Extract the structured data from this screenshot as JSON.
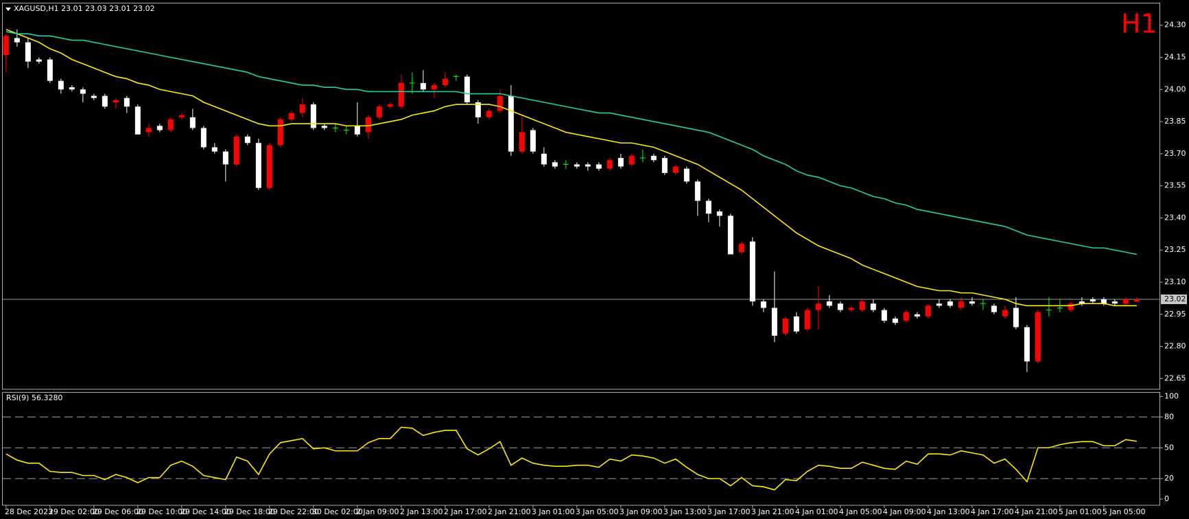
{
  "chart_data": [
    {
      "type": "candlestick",
      "title": "XAGUSD,H1  23.01 23.03 23.01 23.02",
      "annotation": "H1",
      "categories": [
        "28 Dec 2023",
        null,
        null,
        null,
        "29 Dec 02:00",
        null,
        null,
        null,
        "29 Dec 06:00",
        null,
        null,
        null,
        "29 Dec 10:00",
        null,
        null,
        null,
        "29 Dec 14:00",
        null,
        null,
        null,
        "29 Dec 18:00",
        null,
        null,
        null,
        "29 Dec 22:00",
        null,
        null,
        null,
        "30 Dec 02:00",
        null,
        null,
        null,
        "2 Jan 09:00",
        null,
        null,
        null,
        "2 Jan 13:00",
        null,
        null,
        null,
        "2 Jan 17:00",
        null,
        null,
        null,
        "2 Jan 21:00",
        null,
        null,
        null,
        "3 Jan 01:00",
        null,
        null,
        null,
        "3 Jan 05:00",
        null,
        null,
        null,
        "3 Jan 09:00",
        null,
        null,
        null,
        "3 Jan 13:00",
        null,
        null,
        null,
        "3 Jan 17:00",
        null,
        null,
        null,
        "3 Jan 21:00",
        null,
        null,
        null,
        "4 Jan 01:00",
        null,
        null,
        null,
        "4 Jan 05:00",
        null,
        null,
        null,
        "4 Jan 09:00",
        null,
        null,
        null,
        "4 Jan 13:00",
        null,
        null,
        null,
        "4 Jan 17:00",
        null,
        null,
        null,
        "4 Jan 21:00",
        null,
        null,
        null,
        "5 Jan 01:00",
        null,
        null,
        null,
        "5 Jan 05:00",
        null,
        null,
        null
      ],
      "ohlc": [
        [
          24.16,
          24.26,
          24.08,
          24.25
        ],
        [
          24.24,
          24.28,
          24.2,
          24.22
        ],
        [
          24.22,
          24.24,
          24.1,
          24.13
        ],
        [
          24.14,
          24.15,
          24.12,
          24.13
        ],
        [
          24.14,
          24.15,
          24.03,
          24.04
        ],
        [
          24.04,
          24.05,
          23.98,
          24.0
        ],
        [
          24.01,
          24.02,
          23.99,
          24.0
        ],
        [
          24.0,
          24.01,
          23.94,
          23.98
        ],
        [
          23.97,
          23.98,
          23.95,
          23.96
        ],
        [
          23.97,
          23.98,
          23.91,
          23.92
        ],
        [
          23.94,
          23.96,
          23.91,
          23.95
        ],
        [
          23.96,
          23.97,
          23.89,
          23.92
        ],
        [
          23.92,
          23.93,
          23.79,
          23.79
        ],
        [
          23.8,
          23.84,
          23.78,
          23.82
        ],
        [
          23.83,
          23.84,
          23.8,
          23.81
        ],
        [
          23.81,
          23.87,
          23.8,
          23.86
        ],
        [
          23.87,
          23.89,
          23.86,
          23.88
        ],
        [
          23.87,
          23.91,
          23.81,
          23.82
        ],
        [
          23.82,
          23.83,
          23.72,
          23.73
        ],
        [
          23.73,
          23.75,
          23.7,
          23.71
        ],
        [
          23.71,
          23.72,
          23.57,
          23.65
        ],
        [
          23.65,
          23.79,
          23.64,
          23.78
        ],
        [
          23.78,
          23.79,
          23.74,
          23.75
        ],
        [
          23.75,
          23.77,
          23.53,
          23.54
        ],
        [
          23.54,
          23.75,
          23.53,
          23.74
        ],
        [
          23.74,
          23.87,
          23.73,
          23.86
        ],
        [
          23.86,
          23.9,
          23.85,
          23.89
        ],
        [
          23.89,
          23.96,
          23.87,
          23.93
        ],
        [
          23.93,
          23.94,
          23.81,
          23.82
        ],
        [
          23.83,
          23.84,
          23.81,
          23.82
        ],
        [
          23.82,
          23.84,
          23.8,
          23.82
        ],
        [
          23.81,
          23.83,
          23.79,
          23.81
        ],
        [
          23.83,
          23.94,
          23.78,
          23.79
        ],
        [
          23.8,
          23.88,
          23.77,
          23.87
        ],
        [
          23.87,
          23.93,
          23.86,
          23.92
        ],
        [
          23.92,
          23.94,
          23.91,
          23.93
        ],
        [
          23.92,
          24.07,
          23.91,
          24.03
        ],
        [
          24.03,
          24.08,
          23.98,
          24.03
        ],
        [
          24.03,
          24.09,
          23.99,
          24.0
        ],
        [
          24.0,
          24.03,
          23.96,
          24.02
        ],
        [
          24.02,
          24.08,
          24.01,
          24.05
        ],
        [
          24.06,
          24.07,
          24.04,
          24.06
        ],
        [
          24.06,
          24.07,
          23.93,
          23.94
        ],
        [
          23.94,
          23.95,
          23.84,
          23.87
        ],
        [
          23.87,
          23.91,
          23.86,
          23.9
        ],
        [
          23.9,
          24.0,
          23.89,
          23.97
        ],
        [
          23.97,
          24.02,
          23.69,
          23.71
        ],
        [
          23.71,
          23.88,
          23.7,
          23.8
        ],
        [
          23.81,
          23.82,
          23.7,
          23.71
        ],
        [
          23.7,
          23.73,
          23.64,
          23.65
        ],
        [
          23.66,
          23.67,
          23.63,
          23.64
        ],
        [
          23.65,
          23.67,
          23.63,
          23.65
        ],
        [
          23.65,
          23.66,
          23.63,
          23.64
        ],
        [
          23.65,
          23.66,
          23.62,
          23.64
        ],
        [
          23.65,
          23.66,
          23.62,
          23.63
        ],
        [
          23.63,
          23.68,
          23.62,
          23.67
        ],
        [
          23.68,
          23.7,
          23.63,
          23.64
        ],
        [
          23.65,
          23.7,
          23.64,
          23.69
        ],
        [
          23.68,
          23.72,
          23.66,
          23.68
        ],
        [
          23.69,
          23.7,
          23.66,
          23.67
        ],
        [
          23.68,
          23.69,
          23.6,
          23.61
        ],
        [
          23.61,
          23.65,
          23.6,
          23.64
        ],
        [
          23.63,
          23.64,
          23.56,
          23.57
        ],
        [
          23.57,
          23.58,
          23.41,
          23.48
        ],
        [
          23.48,
          23.49,
          23.38,
          23.42
        ],
        [
          23.43,
          23.44,
          23.36,
          23.41
        ],
        [
          23.41,
          23.42,
          23.23,
          23.23
        ],
        [
          23.24,
          23.29,
          23.23,
          23.28
        ],
        [
          23.29,
          23.31,
          22.99,
          23.01
        ],
        [
          23.01,
          23.02,
          22.96,
          22.98
        ],
        [
          22.98,
          23.15,
          22.82,
          22.85
        ],
        [
          22.86,
          22.94,
          22.85,
          22.93
        ],
        [
          22.94,
          22.96,
          22.86,
          22.87
        ],
        [
          22.88,
          22.98,
          22.87,
          22.97
        ],
        [
          22.97,
          23.08,
          22.88,
          23.0
        ],
        [
          23.01,
          23.04,
          22.98,
          22.99
        ],
        [
          23.0,
          23.01,
          22.96,
          22.97
        ],
        [
          22.97,
          22.99,
          22.96,
          22.98
        ],
        [
          22.97,
          23.02,
          22.96,
          23.01
        ],
        [
          23.0,
          23.02,
          22.96,
          22.97
        ],
        [
          22.97,
          22.98,
          22.91,
          22.92
        ],
        [
          22.93,
          22.94,
          22.9,
          22.91
        ],
        [
          22.92,
          22.97,
          22.91,
          22.96
        ],
        [
          22.95,
          22.96,
          22.93,
          22.94
        ],
        [
          22.94,
          23.0,
          22.93,
          22.99
        ],
        [
          23.0,
          23.02,
          22.98,
          22.99
        ],
        [
          23.01,
          23.02,
          22.98,
          22.99
        ],
        [
          22.98,
          23.03,
          22.97,
          23.01
        ],
        [
          23.01,
          23.03,
          22.99,
          23.0
        ],
        [
          23.0,
          23.02,
          22.97,
          23.0
        ],
        [
          22.99,
          23.0,
          22.95,
          22.96
        ],
        [
          22.94,
          22.99,
          22.93,
          22.97
        ],
        [
          22.98,
          23.03,
          22.88,
          22.89
        ],
        [
          22.89,
          22.9,
          22.68,
          22.73
        ],
        [
          22.73,
          22.97,
          22.72,
          22.96
        ],
        [
          22.97,
          23.03,
          22.94,
          22.97
        ],
        [
          22.98,
          23.02,
          22.96,
          22.98
        ],
        [
          22.97,
          23.01,
          22.96,
          23.0
        ],
        [
          23.01,
          23.03,
          22.99,
          23.0
        ],
        [
          23.02,
          23.03,
          23.0,
          23.01
        ],
        [
          23.02,
          23.03,
          22.99,
          23.0
        ],
        [
          23.01,
          23.02,
          22.99,
          23.0
        ],
        [
          23.0,
          23.03,
          22.99,
          23.02
        ],
        [
          23.01,
          23.03,
          23.01,
          23.02
        ]
      ],
      "up_color": "#ff0000",
      "down_color": "#ffffff",
      "doji_color": "#00ff00",
      "series": [
        {
          "color": "#ffea00",
          "values": [
            24.28,
            24.26,
            24.24,
            24.22,
            24.19,
            24.17,
            24.14,
            24.12,
            24.1,
            24.08,
            24.06,
            24.05,
            24.03,
            24.02,
            24.0,
            23.99,
            23.98,
            23.97,
            23.94,
            23.92,
            23.9,
            23.88,
            23.86,
            23.84,
            23.83,
            23.83,
            23.84,
            23.84,
            23.84,
            23.84,
            23.84,
            23.83,
            23.83,
            23.83,
            23.84,
            23.85,
            23.86,
            23.88,
            23.89,
            23.9,
            23.92,
            23.93,
            23.93,
            23.93,
            23.93,
            23.92,
            23.9,
            23.88,
            23.86,
            23.84,
            23.82,
            23.8,
            23.79,
            23.78,
            23.77,
            23.76,
            23.75,
            23.75,
            23.74,
            23.73,
            23.71,
            23.69,
            23.67,
            23.65,
            23.62,
            23.59,
            23.56,
            23.53,
            23.49,
            23.45,
            23.41,
            23.37,
            23.33,
            23.3,
            23.27,
            23.25,
            23.23,
            23.21,
            23.18,
            23.16,
            23.14,
            23.12,
            23.1,
            23.08,
            23.07,
            23.06,
            23.06,
            23.05,
            23.05,
            23.04,
            23.03,
            23.02,
            23.0,
            22.99,
            22.99,
            22.99,
            22.99,
            22.99,
            23.0,
            23.0,
            23.0,
            22.99,
            22.99,
            22.99
          ]
        },
        {
          "color": "#20d0a8",
          "values": [
            24.27,
            24.26,
            24.26,
            24.25,
            24.25,
            24.24,
            24.23,
            24.23,
            24.22,
            24.21,
            24.2,
            24.19,
            24.18,
            24.17,
            24.16,
            24.15,
            24.14,
            24.13,
            24.12,
            24.11,
            24.1,
            24.09,
            24.08,
            24.06,
            24.05,
            24.04,
            24.03,
            24.02,
            24.02,
            24.01,
            24.01,
            24.0,
            24.0,
            23.99,
            23.99,
            23.99,
            23.99,
            23.99,
            23.99,
            23.99,
            23.99,
            23.99,
            23.98,
            23.98,
            23.98,
            23.98,
            23.97,
            23.96,
            23.95,
            23.94,
            23.93,
            23.92,
            23.91,
            23.9,
            23.89,
            23.89,
            23.88,
            23.87,
            23.86,
            23.85,
            23.84,
            23.83,
            23.82,
            23.81,
            23.8,
            23.78,
            23.76,
            23.74,
            23.72,
            23.69,
            23.67,
            23.65,
            23.62,
            23.6,
            23.59,
            23.57,
            23.55,
            23.54,
            23.52,
            23.5,
            23.49,
            23.47,
            23.46,
            23.44,
            23.43,
            23.42,
            23.41,
            23.4,
            23.39,
            23.38,
            23.37,
            23.36,
            23.34,
            23.32,
            23.31,
            23.3,
            23.29,
            23.28,
            23.27,
            23.26,
            23.26,
            23.25,
            23.24,
            23.23
          ]
        }
      ],
      "ylim": [
        22.6,
        24.4
      ],
      "yticks": [
        {
          "value": 24.3,
          "label": "24.30"
        },
        24.15,
        {
          "value": 24.0,
          "label": "24.00"
        },
        23.85,
        {
          "value": 23.7,
          "label": "23.70"
        },
        23.55,
        {
          "value": 23.4,
          "label": "23.40"
        },
        23.25,
        {
          "value": 23.1,
          "label": "23.10"
        },
        22.95,
        {
          "value": 22.8,
          "label": "22.80"
        },
        22.65
      ],
      "price_line": 23.02
    },
    {
      "type": "line",
      "title": "RSI(9) 56.3280",
      "color": "#ffea00",
      "values": [
        44,
        38,
        35,
        35,
        27,
        26,
        26,
        23,
        23,
        19,
        24,
        21,
        16,
        21,
        21,
        33,
        37,
        32,
        23,
        21,
        19,
        41,
        37,
        24,
        44,
        55,
        57,
        59,
        49,
        50,
        47,
        47,
        47,
        55,
        59,
        59,
        70,
        69,
        62,
        65,
        67,
        67,
        49,
        43,
        49,
        56,
        33,
        40,
        35,
        33,
        32,
        32,
        33,
        33,
        31,
        39,
        37,
        43,
        42,
        40,
        35,
        39,
        31,
        24,
        20,
        20,
        13,
        21,
        13,
        12,
        9,
        19,
        18,
        27,
        33,
        32,
        30,
        30,
        36,
        33,
        30,
        29,
        37,
        34,
        44,
        44,
        43,
        47,
        45,
        43,
        35,
        39,
        29,
        17,
        50,
        50,
        53,
        55,
        56,
        56,
        52,
        52,
        58,
        56.328
      ],
      "ylim": [
        -6,
        104
      ],
      "yticks": [
        0,
        20,
        50,
        80,
        100
      ],
      "levels": [
        20,
        50,
        80
      ]
    }
  ]
}
